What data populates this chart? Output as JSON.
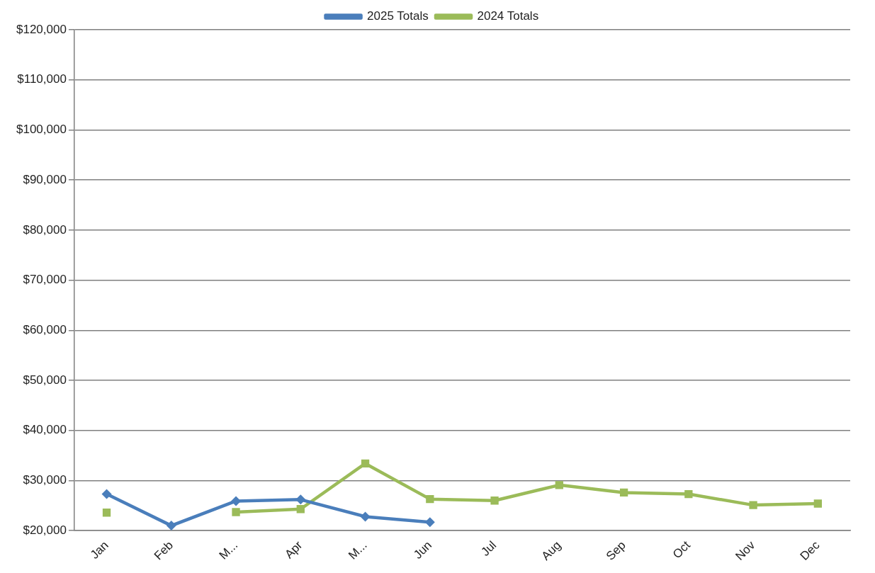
{
  "chart_data": {
    "type": "line",
    "categories": [
      "Jan",
      "Feb",
      "M...",
      "Apr",
      "M...",
      "Jun",
      "Jul",
      "Aug",
      "Sep",
      "Oct",
      "Nov",
      "Dec"
    ],
    "series": [
      {
        "name": "2025 Totals",
        "color": "#4a7ebb",
        "marker": "diamond",
        "values": [
          27300,
          21000,
          25900,
          26200,
          22800,
          21700,
          null,
          null,
          null,
          null,
          null,
          null
        ]
      },
      {
        "name": "2024 Totals",
        "color": "#9bbb59",
        "marker": "square",
        "values": [
          23600,
          null,
          23700,
          24300,
          33400,
          26300,
          26000,
          29100,
          27600,
          27300,
          25100,
          25400
        ]
      }
    ],
    "ylim": [
      20000,
      120000
    ],
    "yticks": [
      {
        "value": 20000,
        "label": "$20,000"
      },
      {
        "value": 30000,
        "label": "$30,000"
      },
      {
        "value": 40000,
        "label": "$40,000"
      },
      {
        "value": 50000,
        "label": "$50,000"
      },
      {
        "value": 60000,
        "label": "$60,000"
      },
      {
        "value": 70000,
        "label": "$70,000"
      },
      {
        "value": 80000,
        "label": "$80,000"
      },
      {
        "value": 90000,
        "label": "$90,000"
      },
      {
        "value": 100000,
        "label": "$100,000"
      },
      {
        "value": 110000,
        "label": "$110,000"
      },
      {
        "value": 120000,
        "label": "$120,000"
      }
    ],
    "grid": "y",
    "legend": "top",
    "line_style": "solid"
  }
}
